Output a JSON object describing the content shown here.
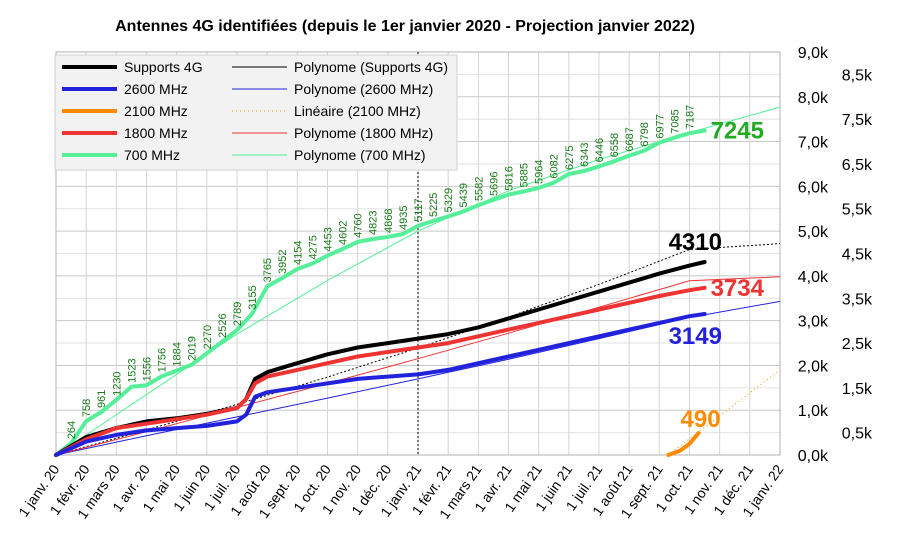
{
  "chart_data": {
    "type": "line",
    "title": "Antennes 4G identifiées (depuis le 1er janvier 2020 - Projection janvier 2022)",
    "x_tick_labels": [
      "1 janv. 20",
      "1 févr. 20",
      "1 mars 20",
      "1 avr. 20",
      "1 mai 20",
      "1 juin 20",
      "1 juil. 20",
      "1 août 20",
      "1 sept. 20",
      "1 oct. 20",
      "1 nov. 20",
      "1 déc. 20",
      "1 janv. 21",
      "1 févr. 21",
      "1 mars 21",
      "1 avr. 21",
      "1 mai 21",
      "1 juin 21",
      "1 juil. 21",
      "1 août 21",
      "1 sept. 21",
      "1 oct. 21",
      "1 nov. 21",
      "1 déc. 21",
      "1 janv. 22"
    ],
    "x_unit": "months since 1 janv. 20",
    "xlim": [
      0,
      24
    ],
    "ylim": [
      0,
      9000
    ],
    "y_left_ticks": [
      "0,0k",
      "1,0k",
      "2,0k",
      "3,0k",
      "4,0k",
      "5,0k",
      "6,0k",
      "7,0k",
      "8,0k",
      "9,0k"
    ],
    "y_right_ticks": [
      "0,5k",
      "1,5k",
      "2,5k",
      "3,5k",
      "4,5k",
      "5,5k",
      "6,5k",
      "7,5k",
      "8,5k"
    ],
    "grid": true,
    "legend_position": "top-left",
    "legend": [
      {
        "label": "Supports 4G",
        "color": "#000000",
        "style": "solid"
      },
      {
        "label": "Polynome (Supports 4G)",
        "color": "#000000",
        "style": "thin"
      },
      {
        "label": "2600 MHz",
        "color": "#2222dd",
        "style": "solid"
      },
      {
        "label": "Polynome (2600 MHz)",
        "color": "#2222dd",
        "style": "thin"
      },
      {
        "label": "2100 MHz",
        "color": "#ff8c00",
        "style": "solid"
      },
      {
        "label": "Linéaire (2100 MHz)",
        "color": "#ff8c00",
        "style": "dotted"
      },
      {
        "label": "1800 MHz",
        "color": "#ee3333",
        "style": "solid"
      },
      {
        "label": "Polynome (1800 MHz)",
        "color": "#ee3333",
        "style": "thin"
      },
      {
        "label": "700 MHz",
        "color": "#55ee99",
        "style": "solid"
      },
      {
        "label": "Polynome (700 MHz)",
        "color": "#55ee99",
        "style": "thin"
      }
    ],
    "vertical_marker_x": 12,
    "series": [
      {
        "name": "700 MHz",
        "color": "#55ee99",
        "end_label": "7245",
        "end_label_color": "#22aa22",
        "x": [
          0,
          0.5,
          1,
          1.5,
          2,
          2.5,
          3,
          3.5,
          4,
          4.5,
          5,
          5.5,
          6,
          6.5,
          7,
          7.5,
          8,
          8.5,
          9,
          9.5,
          10,
          10.5,
          11,
          11.5,
          12,
          12.5,
          13,
          13.5,
          14,
          14.5,
          15,
          15.5,
          16,
          16.5,
          17,
          17.5,
          18,
          18.5,
          19,
          19.5,
          20,
          20.5,
          21,
          21.5
        ],
        "values": [
          0,
          264,
          758,
          961,
          1230,
          1523,
          1556,
          1756,
          1884,
          2019,
          2270,
          2526,
          2789,
          3155,
          3765,
          3952,
          4154,
          4275,
          4453,
          4602,
          4760,
          4823,
          4868,
          4935,
          5117,
          5225,
          5329,
          5439,
          5582,
          5696,
          5816,
          5885,
          5964,
          6082,
          6275,
          6343,
          6446,
          6558,
          6687,
          6798,
          6977,
          7085,
          7187,
          7245
        ],
        "point_labels": [
          "",
          "264",
          "758",
          "961",
          "1230",
          "1523",
          "1556",
          "1756",
          "1884",
          "2019",
          "2270",
          "2526",
          "2789",
          "3155",
          "3765",
          "3952",
          "4154",
          "4275",
          "4453",
          "4602",
          "4760",
          "4823",
          "4868",
          "4935",
          "5117",
          "5225",
          "5329",
          "5439",
          "5582",
          "5696",
          "5816",
          "5885",
          "5964",
          "6082",
          "6275",
          "6343",
          "6446",
          "6558",
          "6687",
          "6798",
          "6977",
          "7085",
          "7187",
          ""
        ]
      },
      {
        "name": "Supports 4G",
        "color": "#000000",
        "end_label": "4310",
        "end_label_color": "#000000",
        "x": [
          0,
          1,
          2,
          3,
          4,
          5,
          6,
          6.3,
          6.6,
          7,
          8,
          9,
          10,
          11,
          12,
          13,
          14,
          15,
          16,
          17,
          18,
          19,
          20,
          21,
          21.5
        ],
        "values": [
          0,
          400,
          600,
          750,
          820,
          920,
          1050,
          1250,
          1700,
          1850,
          2050,
          2250,
          2400,
          2500,
          2600,
          2700,
          2850,
          3050,
          3250,
          3450,
          3650,
          3850,
          4050,
          4230,
          4310
        ]
      },
      {
        "name": "1800 MHz",
        "color": "#ee3333",
        "end_label": "3734",
        "end_label_color": "#ee3333",
        "x": [
          0,
          1,
          2,
          3,
          4,
          5,
          6,
          6.3,
          6.6,
          7,
          8,
          9,
          10,
          11,
          12,
          13,
          14,
          15,
          16,
          17,
          18,
          19,
          20,
          21,
          21.5
        ],
        "values": [
          0,
          350,
          600,
          700,
          800,
          900,
          1050,
          1250,
          1600,
          1750,
          1900,
          2050,
          2200,
          2300,
          2400,
          2500,
          2650,
          2800,
          2950,
          3100,
          3250,
          3400,
          3550,
          3680,
          3734
        ]
      },
      {
        "name": "2600 MHz",
        "color": "#2222dd",
        "end_label": "3149",
        "end_label_color": "#2222dd",
        "x": [
          0,
          1,
          2,
          3,
          4,
          5,
          6,
          6.3,
          6.6,
          7,
          8,
          9,
          10,
          11,
          12,
          13,
          14,
          15,
          16,
          17,
          18,
          19,
          20,
          21,
          21.5
        ],
        "values": [
          0,
          300,
          450,
          550,
          600,
          650,
          750,
          900,
          1300,
          1400,
          1500,
          1600,
          1700,
          1750,
          1800,
          1900,
          2050,
          2200,
          2350,
          2500,
          2650,
          2800,
          2950,
          3100,
          3149
        ]
      },
      {
        "name": "2100 MHz",
        "color": "#ff8c00",
        "end_label": "490",
        "end_label_color": "#ff8c00",
        "x": [
          20.3,
          20.7,
          21,
          21.3
        ],
        "values": [
          0,
          100,
          250,
          490
        ]
      }
    ],
    "trend_lines": [
      {
        "name": "Polynome (Supports 4G)",
        "color": "#000000",
        "dash": "2,2",
        "x": [
          0,
          3,
          6,
          9,
          12,
          15,
          18,
          21,
          24
        ],
        "values": [
          0,
          560,
          1130,
          1740,
          2390,
          3080,
          3810,
          4590,
          4720
        ]
      },
      {
        "name": "Polynome (2600 MHz)",
        "color": "#2222dd",
        "dash": "",
        "x": [
          0,
          3,
          6,
          9,
          12,
          15,
          18,
          21,
          24
        ],
        "values": [
          0,
          430,
          850,
          1270,
          1700,
          2140,
          2600,
          3070,
          3430
        ]
      },
      {
        "name": "Polynome (1800 MHz)",
        "color": "#ee3333",
        "dash": "",
        "x": [
          0,
          3,
          6,
          9,
          12,
          15,
          18,
          21,
          24
        ],
        "values": [
          0,
          520,
          1060,
          1600,
          2150,
          2720,
          3300,
          3890,
          3980
        ]
      },
      {
        "name": "Polynome (700 MHz)",
        "color": "#55ee99",
        "dash": "",
        "x": [
          0,
          3,
          6,
          9,
          12,
          15,
          18,
          21,
          24
        ],
        "values": [
          0,
          1350,
          2700,
          3900,
          5000,
          5900,
          6600,
          7200,
          7770
        ]
      },
      {
        "name": "Linéaire (2100 MHz)",
        "color": "#ff8c00",
        "dash": "1,3",
        "x": [
          20.3,
          24
        ],
        "values": [
          0,
          1900
        ]
      }
    ]
  }
}
